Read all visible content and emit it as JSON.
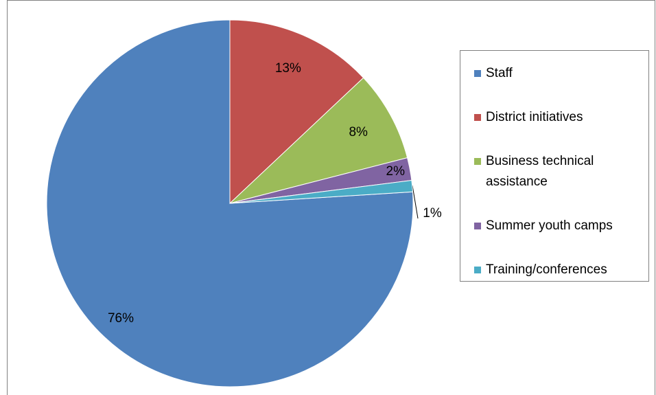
{
  "chart_data": {
    "type": "pie",
    "categories": [
      "Staff",
      "District initiatives",
      "Business technical assistance",
      "Summer youth camps",
      "Training/conferences"
    ],
    "values": [
      76,
      13,
      8,
      2,
      1
    ],
    "value_labels": [
      "76%",
      "13%",
      "8%",
      "2%",
      "1%"
    ],
    "colors": [
      "#4f81bd",
      "#c0504d",
      "#9bbb59",
      "#8064a2",
      "#4bacc6"
    ],
    "legend": "right"
  }
}
